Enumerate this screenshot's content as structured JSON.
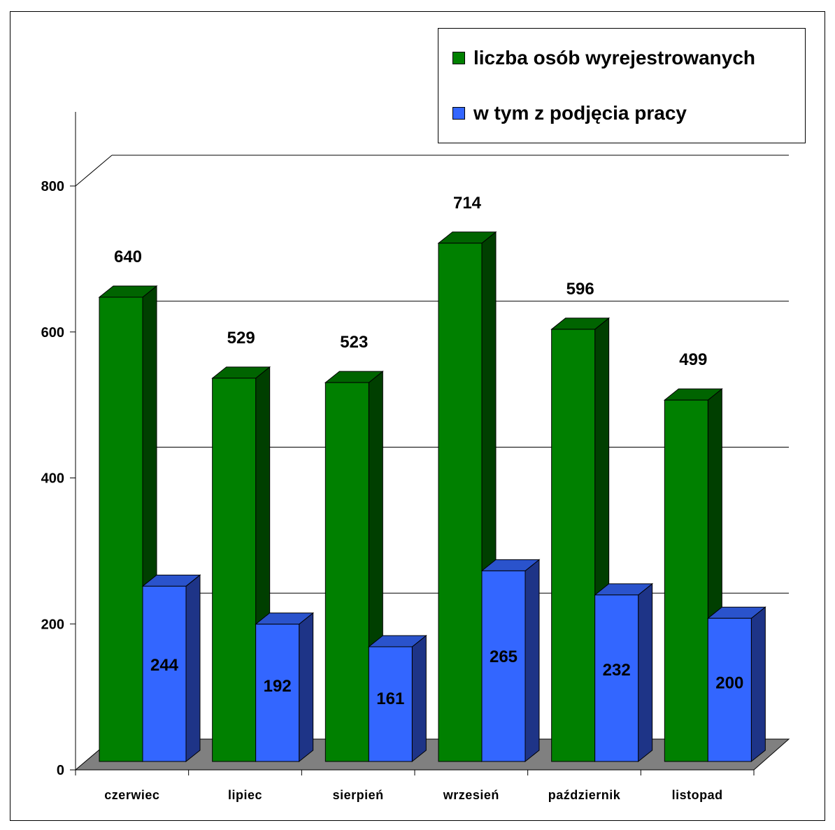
{
  "colors": {
    "series1_front": "#008000",
    "series1_top": "#006400",
    "series1_side": "#003f00",
    "series2_front": "#3366ff",
    "series2_top": "#2a53cc",
    "series2_side": "#1e3487",
    "floor": "#808080"
  },
  "chart_data": {
    "type": "bar",
    "categories": [
      "czerwiec",
      "lipiec",
      "sierpień",
      "wrzesień",
      "październik",
      "listopad"
    ],
    "series": [
      {
        "name": "liczba osób wyrejestrowanych",
        "values": [
          640,
          529,
          523,
          714,
          596,
          499
        ]
      },
      {
        "name": "w tym z podjęcia pracy",
        "values": [
          244,
          192,
          161,
          265,
          232,
          200
        ]
      }
    ],
    "y_ticks": [
      "0",
      "200",
      "400",
      "600",
      "800"
    ],
    "ylim": [
      0,
      800
    ],
    "grid": true,
    "legend_position": "top-right"
  }
}
